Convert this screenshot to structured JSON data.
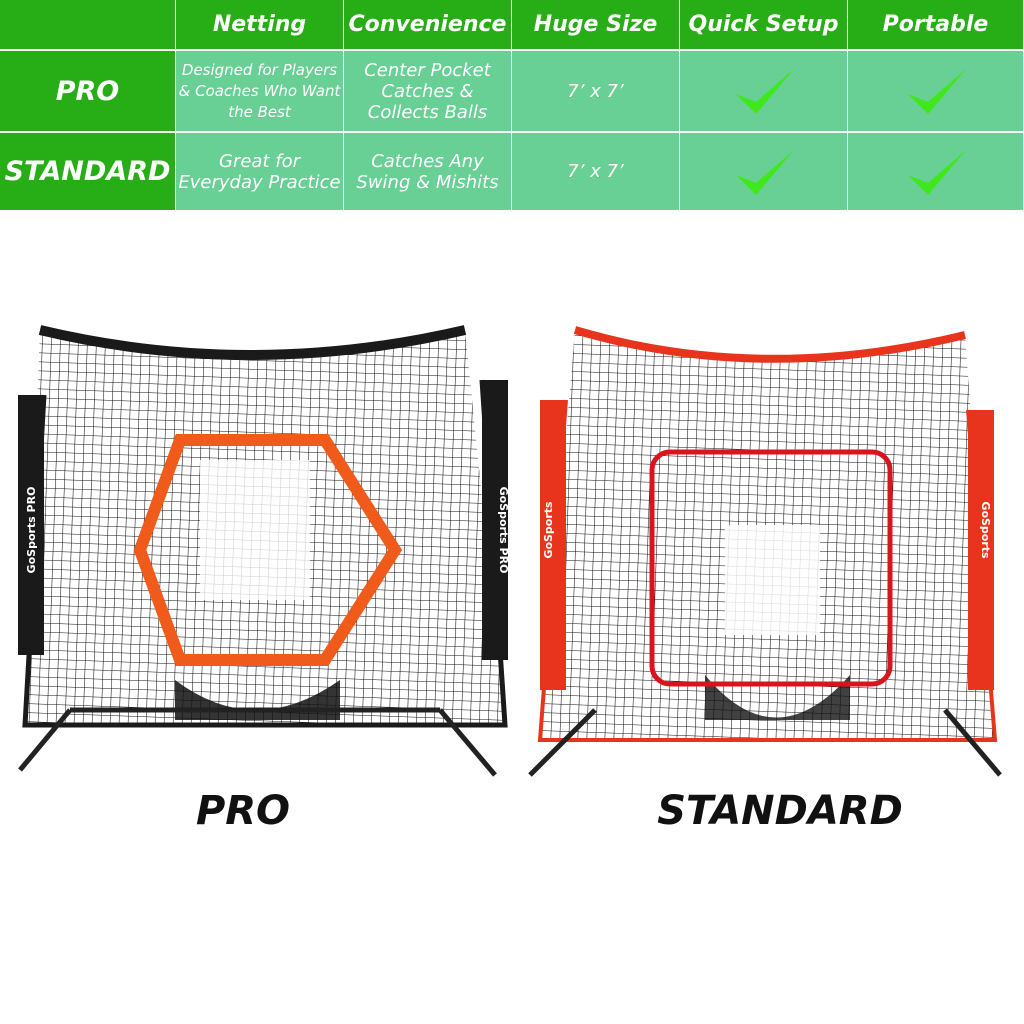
{
  "table": {
    "headers": [
      "",
      "Netting",
      "Convenience",
      "Huge Size",
      "Quick Setup",
      "Portable"
    ],
    "rows": [
      {
        "label": "PRO",
        "netting": "Designed for Players & Coaches Who Want the Best",
        "convenience": "Center Pocket Catches & Collects Balls",
        "size": "7’ x 7’",
        "quick_setup": true,
        "portable": true
      },
      {
        "label": "STANDARD",
        "netting": "Great for Everyday Practice",
        "convenience": "Catches Any Swing & Mishits",
        "size": "7’ x 7’",
        "quick_setup": true,
        "portable": true
      }
    ],
    "check_icon": "checkmark-icon"
  },
  "products": [
    {
      "label": "PRO",
      "frame_color": "#1a1a1a",
      "target_color": "#f05a1a",
      "brand_logo": "GoSports PRO"
    },
    {
      "label": "STANDARD",
      "frame_color": "#e8341c",
      "target_color": "#d9141e",
      "brand_logo": "GoSports"
    }
  ],
  "colors": {
    "header_green": "#27ad15",
    "cell_green": "#68cf95",
    "check_green": "#3fe81a"
  }
}
